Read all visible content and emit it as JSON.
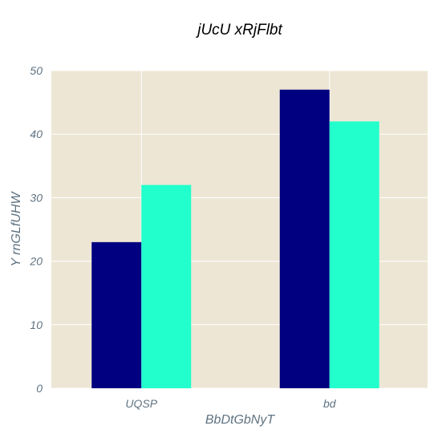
{
  "chart_data": {
    "type": "bar",
    "title": "jUcU xRjFlbt",
    "xlabel": "BbDtGbNyT",
    "ylabel": "Y rnGLfUHW",
    "categories": [
      "UQSP",
      "bd"
    ],
    "series": [
      {
        "values": [
          23,
          47
        ],
        "color": "#000080"
      },
      {
        "values": [
          32,
          42
        ],
        "color": "#22ffcc"
      }
    ],
    "ylim": [
      0,
      50
    ],
    "yticks": [
      0,
      10,
      20,
      30,
      40,
      50
    ],
    "grid": true,
    "plot_background": "#ede6d4"
  }
}
